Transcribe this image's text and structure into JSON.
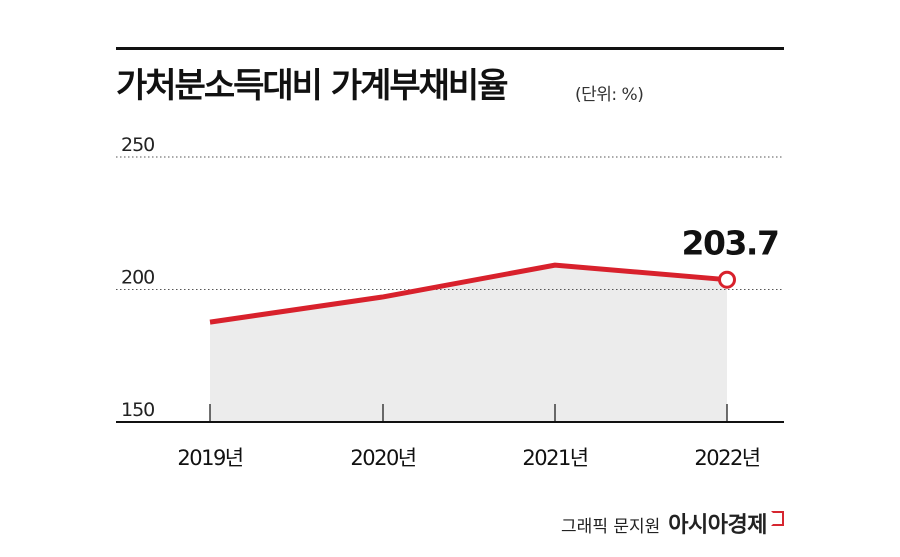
{
  "header": {
    "title": "가처분소득대비 가계부채비율",
    "unit": "(단위: %)"
  },
  "credit": {
    "author": "그래픽 문지원",
    "brand": "아시아경제"
  },
  "colors": {
    "line": "#d8212c",
    "area": "#ececec",
    "axis": "#111111",
    "grid": "#555555"
  },
  "chart_data": {
    "type": "line",
    "categories": [
      "2019년",
      "2020년",
      "2021년",
      "2022년"
    ],
    "series": [
      {
        "values": [
          187.7,
          197.2,
          209.2,
          203.7
        ]
      }
    ],
    "ylim": [
      150,
      250
    ],
    "yticks": [
      250,
      200,
      150
    ],
    "annotation": {
      "text": "203.7",
      "index": 3
    },
    "grid": true,
    "xlabel": "",
    "ylabel": ""
  }
}
